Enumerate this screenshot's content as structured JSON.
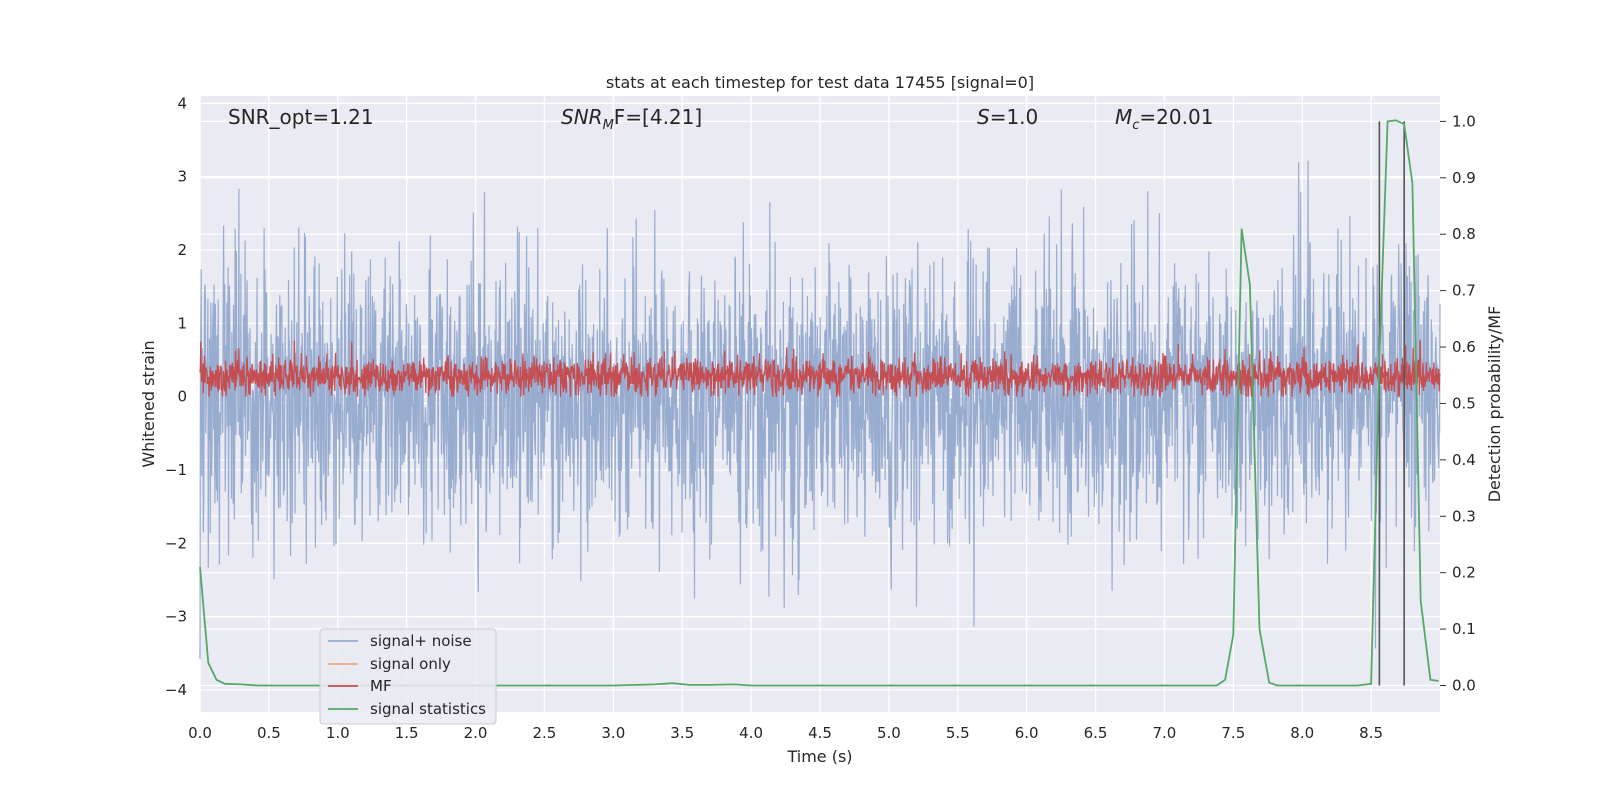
{
  "chart_data": {
    "type": "line",
    "title": "stats at each timestep for test data 17455 [signal=0]",
    "xlabel": "Time (s)",
    "ylabel": "Whitened strain",
    "y2label": "Detection probability/MF",
    "xlim": [
      0.0,
      9.0
    ],
    "ylim": [
      -4.3,
      4.1
    ],
    "y2lim": [
      -0.047,
      1.045
    ],
    "xticks": [
      0.0,
      0.5,
      1.0,
      1.5,
      2.0,
      2.5,
      3.0,
      3.5,
      4.0,
      4.5,
      5.0,
      5.5,
      6.0,
      6.5,
      7.0,
      7.5,
      8.0,
      8.5
    ],
    "yticks": [
      -4,
      -3,
      -2,
      -1,
      0,
      1,
      2,
      3,
      4
    ],
    "y2ticks": [
      0.0,
      0.1,
      0.2,
      0.3,
      0.4,
      0.5,
      0.6,
      0.7,
      0.8,
      0.9,
      1.0
    ],
    "grid": true,
    "legend_position": "lower-left",
    "annotations": {
      "snr_opt": "SNR_opt=1.21",
      "snr_mf_sym": "SNR",
      "snr_mf_sub": "M",
      "snr_mf_rest": "F=[4.21]",
      "s_sym": "S",
      "s_rest": "=1.0",
      "mc_sym": "M",
      "mc_sub": "c",
      "mc_rest": "=20.01"
    },
    "series": [
      {
        "name": "signal+ noise",
        "color": "#98acd0",
        "axis": "left",
        "kind": "noise",
        "amplitude_range": [
          -4.0,
          3.7
        ]
      },
      {
        "name": "signal only",
        "color": "#e8a58a",
        "axis": "left",
        "kind": "flat",
        "values": []
      },
      {
        "name": "MF",
        "color": "#c44e52",
        "axis": "left",
        "kind": "noise",
        "amplitude_range": [
          0.0,
          1.0
        ]
      },
      {
        "name": "signal statistics",
        "color": "#55a868",
        "axis": "right",
        "x": [
          0.0,
          0.06,
          0.12,
          0.18,
          0.3,
          0.42,
          0.6,
          1.0,
          2.0,
          3.0,
          3.3,
          3.43,
          3.55,
          3.7,
          3.88,
          4.0,
          5.0,
          6.0,
          7.0,
          7.38,
          7.44,
          7.5,
          7.56,
          7.62,
          7.69,
          7.76,
          7.82,
          8.0,
          8.4,
          8.5,
          8.56,
          8.62,
          8.68,
          8.74,
          8.8,
          8.86,
          8.93,
          8.99
        ],
        "y": [
          0.21,
          0.04,
          0.01,
          0.003,
          0.002,
          0.0,
          0.0,
          0.0,
          0.0,
          0.0,
          0.002,
          0.004,
          0.001,
          0.001,
          0.002,
          0.0,
          0.0,
          0.0,
          0.0,
          0.0,
          0.01,
          0.09,
          0.81,
          0.71,
          0.1,
          0.005,
          0.0,
          0.0,
          0.0,
          0.003,
          0.58,
          1.0,
          1.002,
          0.995,
          0.89,
          0.15,
          0.01,
          0.008
        ]
      }
    ],
    "vlines": {
      "color": "#555555",
      "x": [
        8.56,
        8.74
      ],
      "y2_range": [
        0.0,
        1.0
      ]
    }
  }
}
